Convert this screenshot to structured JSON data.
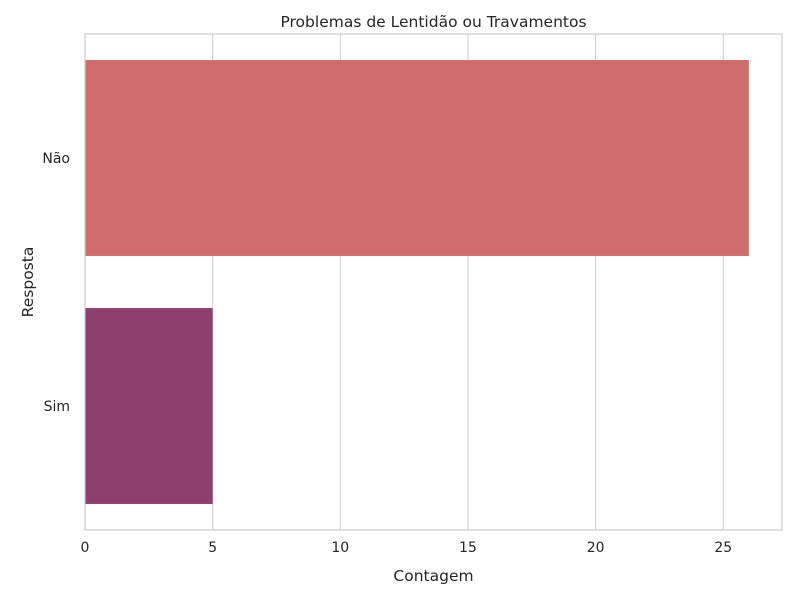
{
  "chart_data": {
    "type": "bar",
    "orientation": "horizontal",
    "title": "Problemas de Lentidão ou Travamentos",
    "xlabel": "Contagem",
    "ylabel": "Resposta",
    "categories": [
      "Não",
      "Sim"
    ],
    "values": [
      26,
      5
    ],
    "colors": [
      "#d06b6c",
      "#8d406c"
    ],
    "xlim": [
      0,
      27.3
    ],
    "xticks": [
      0,
      5,
      10,
      15,
      20,
      25
    ],
    "grid": true
  }
}
